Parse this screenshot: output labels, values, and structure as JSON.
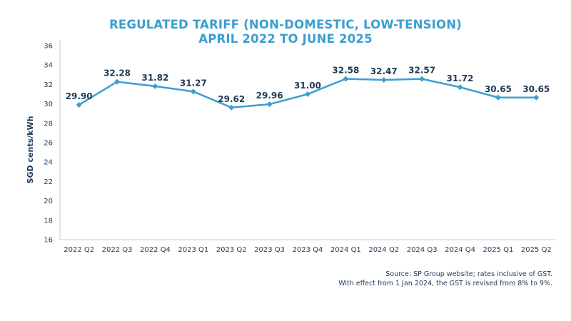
{
  "chart_data": {
    "type": "line",
    "title_line1": "REGULATED TARIFF (NON-DOMESTIC, LOW-TENSION)",
    "title_line2": "APRIL 2022 TO JUNE 2025",
    "xlabel": "",
    "ylabel": "SGD cents/kWh",
    "ylim": [
      16,
      36
    ],
    "yticks": [
      "16",
      "18",
      "20",
      "22",
      "24",
      "26",
      "28",
      "30",
      "32",
      "34",
      "36"
    ],
    "ytick_values": [
      16,
      18,
      20,
      22,
      24,
      26,
      28,
      30,
      32,
      34,
      36
    ],
    "categories": [
      "2022 Q2",
      "2022 Q3",
      "2022 Q4",
      "2023 Q1",
      "2023 Q2",
      "2023 Q3",
      "2023 Q4",
      "2024 Q1",
      "2024 Q2",
      "2024 Q3",
      "2024 Q4",
      "2025 Q1",
      "2025 Q2"
    ],
    "values": [
      29.9,
      32.28,
      31.82,
      31.27,
      29.62,
      29.96,
      31.0,
      32.58,
      32.47,
      32.57,
      31.72,
      30.65,
      30.65
    ],
    "value_labels": [
      "29.90",
      "32.28",
      "31.82",
      "31.27",
      "29.62",
      "29.96",
      "31.00",
      "32.58",
      "32.47",
      "32.57",
      "31.72",
      "30.65",
      "30.65"
    ],
    "grid": false,
    "legend": "none",
    "line_color": "#3a9fd0",
    "text_color": "#1f3a56"
  },
  "notes": {
    "source": "Source: SP Group website; rates inclusive of GST.",
    "gst": "With effect from 1 Jan 2024, the GST is revised from 8% to 9%."
  }
}
